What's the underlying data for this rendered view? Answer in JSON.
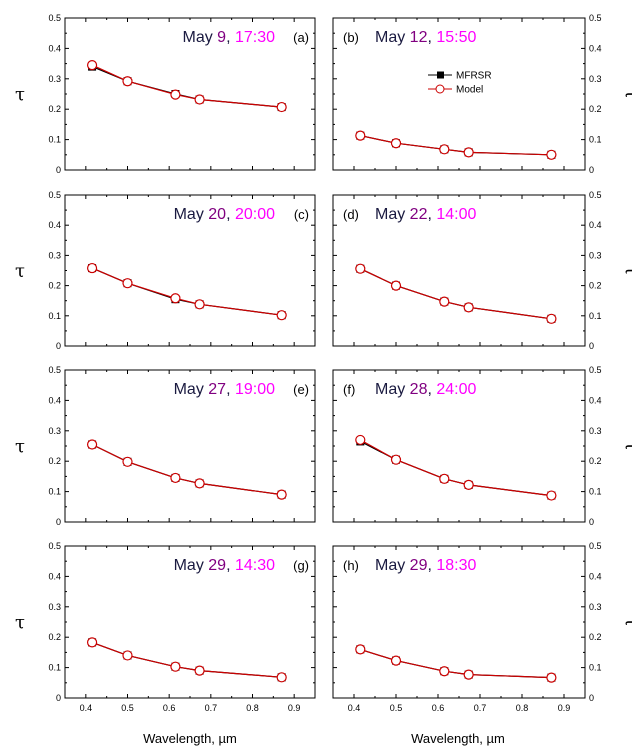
{
  "colors": {
    "mfrsr": "#000000",
    "model": "#cc0000",
    "month_text": "#1a1a40",
    "day_text": "#800080",
    "time_text": "#ff00ff"
  },
  "chart_data": {
    "type": "line",
    "shared": {
      "xlabel": "Wavelength, µm",
      "ylabel": "τ",
      "xlim": [
        0.35,
        0.95
      ],
      "ylim": [
        0,
        0.5
      ],
      "xticks": [
        "0.4",
        "0.5",
        "0.6",
        "0.7",
        "0.8",
        "0.9"
      ],
      "yticks": [
        "0",
        "0.1",
        "0.2",
        "0.3",
        "0.4",
        "0.5"
      ],
      "legend": {
        "location": "top-center of panel (b)",
        "entries": [
          "MFRSR",
          "Model"
        ]
      }
    },
    "panels": [
      {
        "panel": "(a)",
        "month": "May",
        "day": "9",
        "time": "17:30",
        "x": [
          0.415,
          0.5,
          0.615,
          0.673,
          0.87
        ],
        "series": [
          {
            "name": "MFRSR",
            "values": [
              0.34,
              0.292,
              0.25,
              0.232,
              0.207
            ]
          },
          {
            "name": "Model",
            "values": [
              0.345,
              0.292,
              0.248,
              0.232,
              0.207
            ]
          }
        ]
      },
      {
        "panel": "(b)",
        "month": "May",
        "day": "12",
        "time": "15:50",
        "x": [
          0.415,
          0.5,
          0.615,
          0.673,
          0.87
        ],
        "series": [
          {
            "name": "MFRSR",
            "values": [
              0.113,
              0.088,
              0.068,
              0.058,
              0.05
            ]
          },
          {
            "name": "Model",
            "values": [
              0.113,
              0.088,
              0.068,
              0.058,
              0.05
            ]
          }
        ]
      },
      {
        "panel": "(c)",
        "month": "May",
        "day": "20",
        "time": "20:00",
        "x": [
          0.415,
          0.5,
          0.615,
          0.673,
          0.87
        ],
        "series": [
          {
            "name": "MFRSR",
            "values": [
              0.258,
              0.208,
              0.155,
              0.138,
              0.102
            ]
          },
          {
            "name": "Model",
            "values": [
              0.258,
              0.208,
              0.158,
              0.138,
              0.102
            ]
          }
        ]
      },
      {
        "panel": "(d)",
        "month": "May",
        "day": "22",
        "time": "14:00",
        "x": [
          0.415,
          0.5,
          0.615,
          0.673,
          0.87
        ],
        "series": [
          {
            "name": "MFRSR",
            "values": [
              0.256,
              0.2,
              0.147,
              0.128,
              0.09
            ]
          },
          {
            "name": "Model",
            "values": [
              0.256,
              0.2,
              0.147,
              0.128,
              0.09
            ]
          }
        ]
      },
      {
        "panel": "(e)",
        "month": "May",
        "day": "27",
        "time": "19:00",
        "x": [
          0.415,
          0.5,
          0.615,
          0.673,
          0.87
        ],
        "series": [
          {
            "name": "MFRSR",
            "values": [
              0.255,
              0.198,
              0.145,
              0.127,
              0.09
            ]
          },
          {
            "name": "Model",
            "values": [
              0.255,
              0.198,
              0.145,
              0.127,
              0.09
            ]
          }
        ]
      },
      {
        "panel": "(f)",
        "month": "May",
        "day": "28",
        "time": "24:00",
        "x": [
          0.415,
          0.5,
          0.615,
          0.673,
          0.87
        ],
        "series": [
          {
            "name": "MFRSR",
            "values": [
              0.265,
              0.205,
              0.142,
              0.122,
              0.087
            ]
          },
          {
            "name": "Model",
            "values": [
              0.27,
              0.205,
              0.142,
              0.122,
              0.087
            ]
          }
        ]
      },
      {
        "panel": "(g)",
        "month": "May",
        "day": "29",
        "time": "14:30",
        "x": [
          0.415,
          0.5,
          0.615,
          0.673,
          0.87
        ],
        "series": [
          {
            "name": "MFRSR",
            "values": [
              0.183,
              0.14,
              0.103,
              0.09,
              0.068
            ]
          },
          {
            "name": "Model",
            "values": [
              0.183,
              0.14,
              0.103,
              0.09,
              0.068
            ]
          }
        ]
      },
      {
        "panel": "(h)",
        "month": "May",
        "day": "29",
        "time": "18:30",
        "x": [
          0.415,
          0.5,
          0.615,
          0.673,
          0.87
        ],
        "series": [
          {
            "name": "MFRSR",
            "values": [
              0.16,
              0.123,
              0.088,
              0.077,
              0.067
            ]
          },
          {
            "name": "Model",
            "values": [
              0.16,
              0.123,
              0.088,
              0.077,
              0.067
            ]
          }
        ]
      }
    ]
  }
}
